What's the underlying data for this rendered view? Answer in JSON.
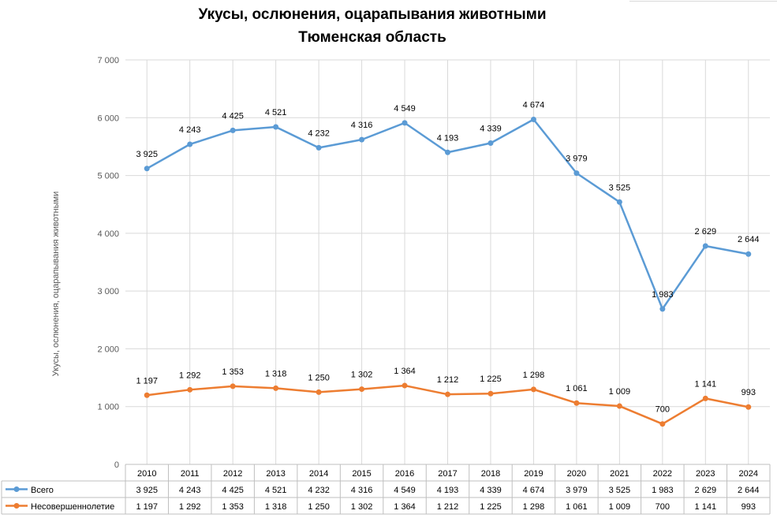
{
  "chart_data": {
    "type": "line",
    "title": "Укусы, ослюнения, оцарапывания животными",
    "subtitle": "Тюменская область",
    "ylabel": "Укусы, ослюнения, оцарапывания животными",
    "xlabel": "",
    "ylim": [
      0,
      7000
    ],
    "yticks": [
      0,
      1000,
      2000,
      3000,
      4000,
      5000,
      6000,
      7000
    ],
    "ytick_labels": [
      "0",
      "1 000",
      "2 000",
      "3 000",
      "4 000",
      "5 000",
      "6 000",
      "7 000"
    ],
    "grid": true,
    "legend": "data-table",
    "categories": [
      "2010",
      "2011",
      "2012",
      "2013",
      "2014",
      "2015",
      "2016",
      "2017",
      "2018",
      "2019",
      "2020",
      "2021",
      "2022",
      "2023",
      "2024"
    ],
    "series": [
      {
        "name": "Всего",
        "color": "#5b9bd5",
        "plot_values": [
          5120,
          5540,
          5780,
          5840,
          5480,
          5620,
          5910,
          5400,
          5560,
          5970,
          5040,
          4540,
          2690,
          3780,
          3640
        ],
        "labels": [
          "3 925",
          "4 243",
          "4 425",
          "4 521",
          "4 232",
          "4 316",
          "4 549",
          "4 193",
          "4 339",
          "4 674",
          "3 979",
          "3 525",
          "1 983",
          "2 629",
          "2 644"
        ]
      },
      {
        "name": "Несовершеннолетие",
        "color": "#ed7d31",
        "plot_values": [
          1197,
          1292,
          1353,
          1318,
          1250,
          1302,
          1364,
          1212,
          1225,
          1298,
          1061,
          1009,
          700,
          1141,
          993
        ],
        "labels": [
          "1 197",
          "1 292",
          "1 353",
          "1 318",
          "1 250",
          "1 302",
          "1 364",
          "1 212",
          "1 225",
          "1 298",
          "1 061",
          "1 009",
          "700",
          "1 141",
          "993"
        ]
      }
    ]
  }
}
